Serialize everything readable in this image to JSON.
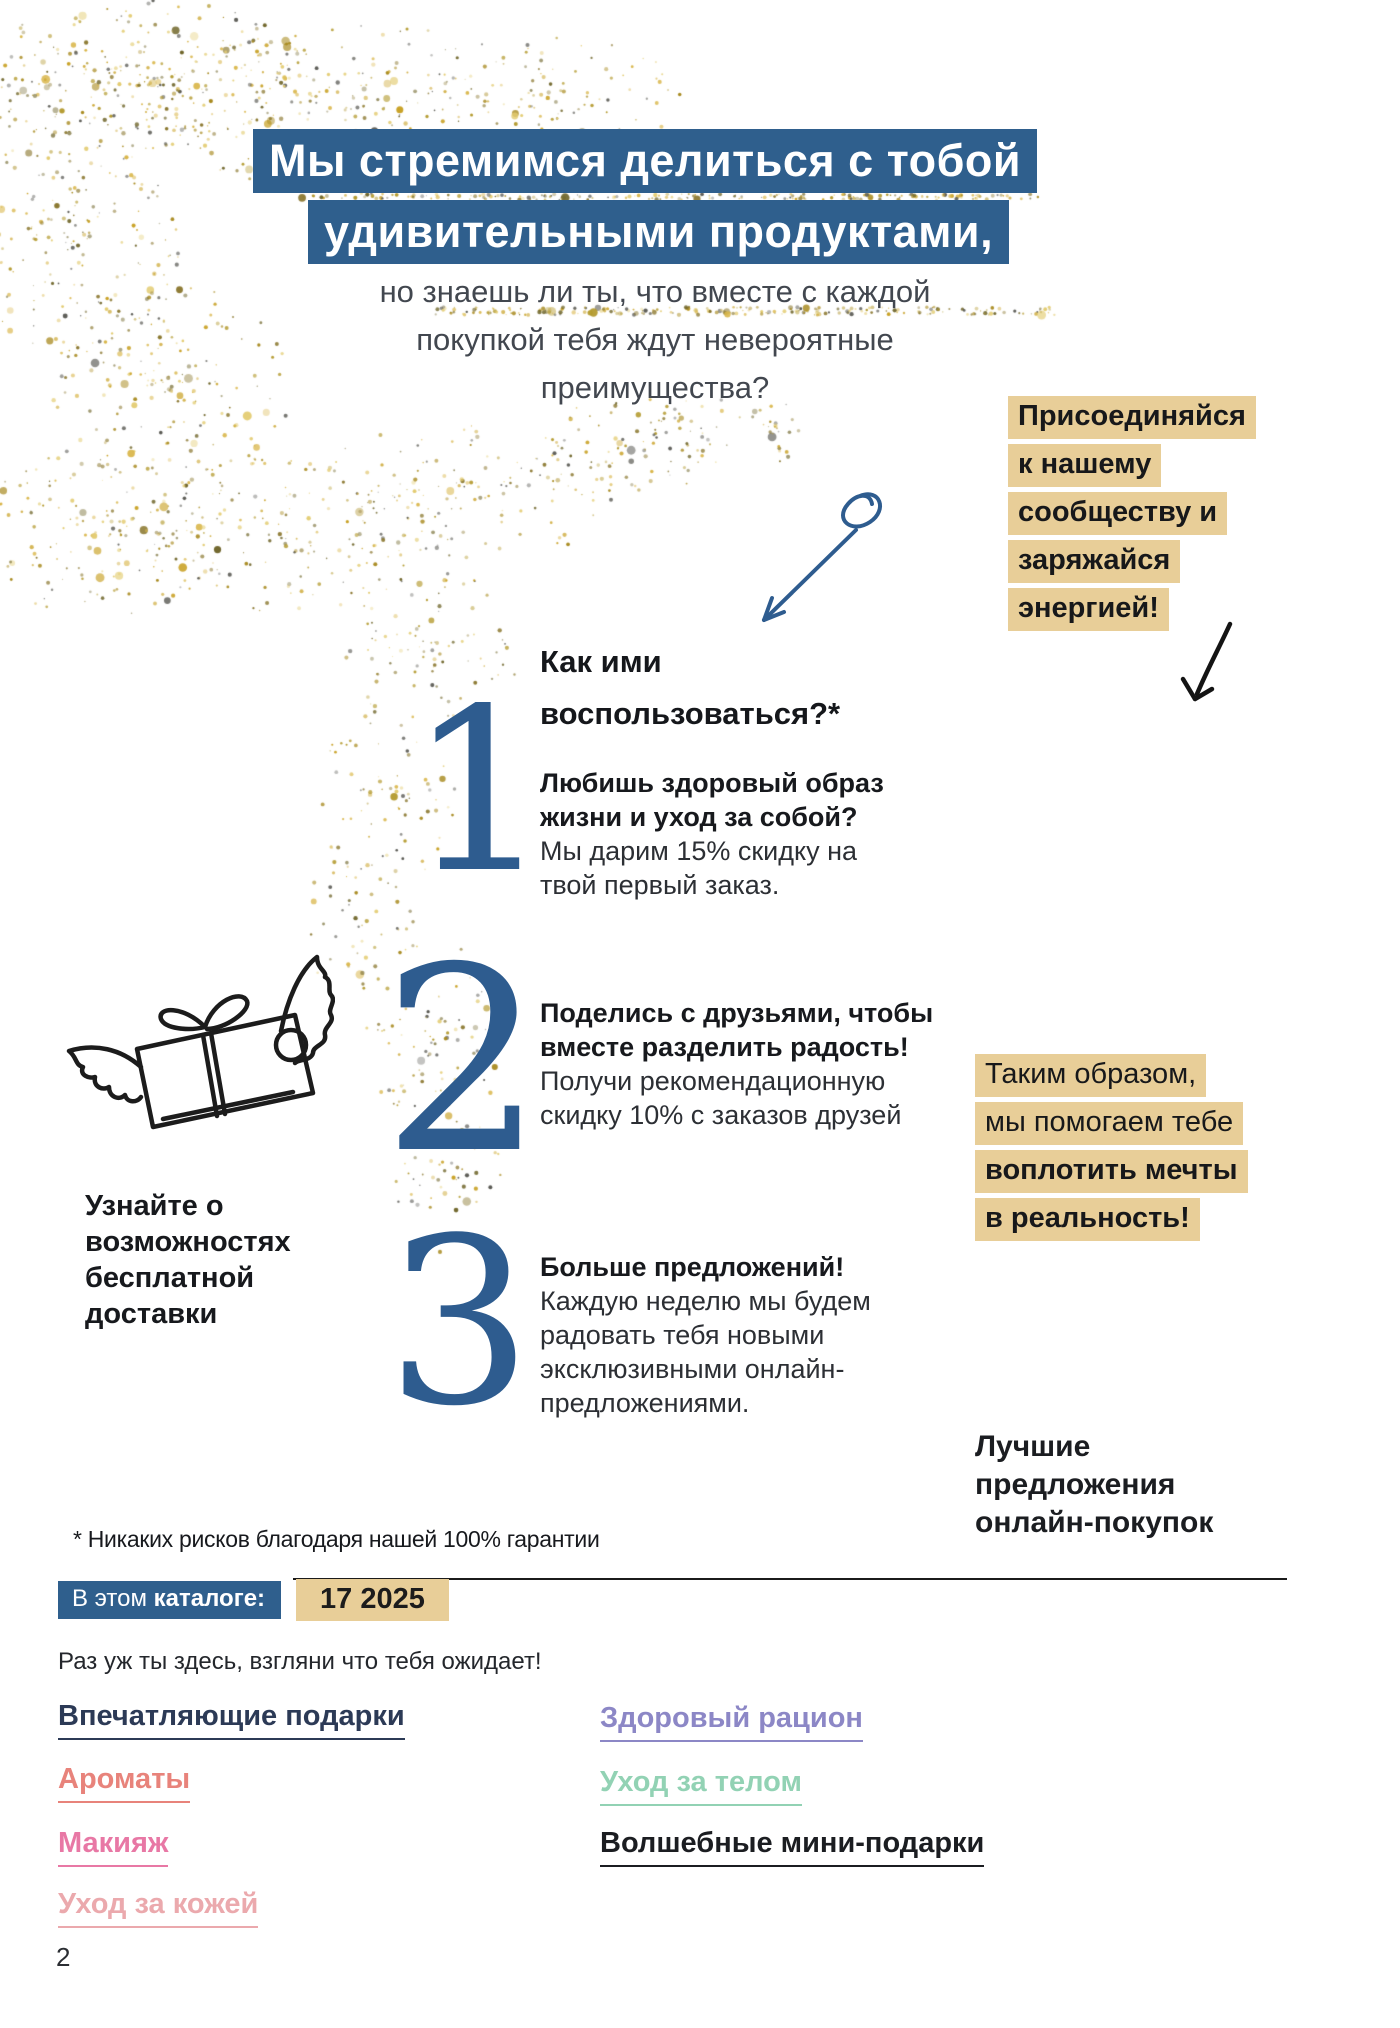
{
  "hero": {
    "title_lines": [
      "Мы стремимся делиться с тобой",
      "удивительными продуктами,"
    ],
    "subtitle_lines": [
      "но знаешь ли ты, что вместе с каждой",
      "покупкой тебя ждут невероятные",
      "преимущества?"
    ]
  },
  "community_callout": {
    "lines": [
      "Присоединяйся",
      "к нашему",
      "сообществу и",
      "заряжайся",
      "энергией!"
    ]
  },
  "how_to": {
    "heading_lines": [
      "Как ими",
      "воспользоваться?*"
    ]
  },
  "steps": [
    {
      "number": "1",
      "bold_lines": [
        "Любишь здоровый образ",
        "жизни и уход за собой?"
      ],
      "text_lines": [
        "Мы дарим 15% скидку на",
        "твой первый заказ."
      ]
    },
    {
      "number": "2",
      "bold_lines": [
        "Поделись с друзьями, чтобы",
        "вместе разделить радость!"
      ],
      "text_lines": [
        "Получи рекомендационную",
        "скидку 10% с заказов друзей"
      ]
    },
    {
      "number": "3",
      "bold_lines": [
        "Больше предложений!"
      ],
      "text_lines": [
        "Каждую неделю мы будем",
        "радовать тебя новыми",
        "эксклюзивными онлайн-",
        "предложениями."
      ]
    }
  ],
  "delivery_note": {
    "lines": [
      "Узнайте о",
      "возможностях",
      "бесплатной",
      "доставки"
    ]
  },
  "dreams_callout": {
    "regular_lines": [
      "Таким образом,",
      "мы помогаем тебе"
    ],
    "bold_lines": [
      "воплотить мечты",
      "в реальность!"
    ]
  },
  "best_offers": {
    "lines": [
      "Лучшие",
      "предложения",
      "онлайн-покупок"
    ]
  },
  "footnote": "* Никаких рисков благодаря нашей 100% гарантии",
  "catalog_bar": {
    "label_regular": "В этом ",
    "label_bold": "каталоге:",
    "issue": "17 2025"
  },
  "teaser": "Раз уж ты здесь, взгляни что тебя ожидает!",
  "links": {
    "column1": [
      {
        "label": "Впечатляющие подарки",
        "color": "#2c3a56"
      },
      {
        "label": "Ароматы",
        "color": "#e8837b"
      },
      {
        "label": "Макияж",
        "color": "#e878a5"
      },
      {
        "label": "Уход за кожей",
        "color": "#eba9ad"
      }
    ],
    "column2": [
      {
        "label": "Здоровый рацион",
        "color": "#8c87c6"
      },
      {
        "label": "Уход за телом",
        "color": "#92d2b4"
      },
      {
        "label": "Волшебные мини-подарки",
        "color": "#1b1d21"
      }
    ]
  },
  "page": {
    "number": "2"
  },
  "colors": {
    "brand_blue": "#2f5f8d",
    "numeral_blue": "#2e5c8f",
    "highlight_tan": "#e8ce98",
    "subtitle_gray": "#42474f",
    "text_dark": "#17191d"
  },
  "decor": {
    "glitter_colors": [
      "#c9a227",
      "#d9b64a",
      "#a88a1f",
      "#8a772e",
      "#e3cc72",
      "#6e6428",
      "#5a5a54",
      "#b49b30"
    ]
  }
}
